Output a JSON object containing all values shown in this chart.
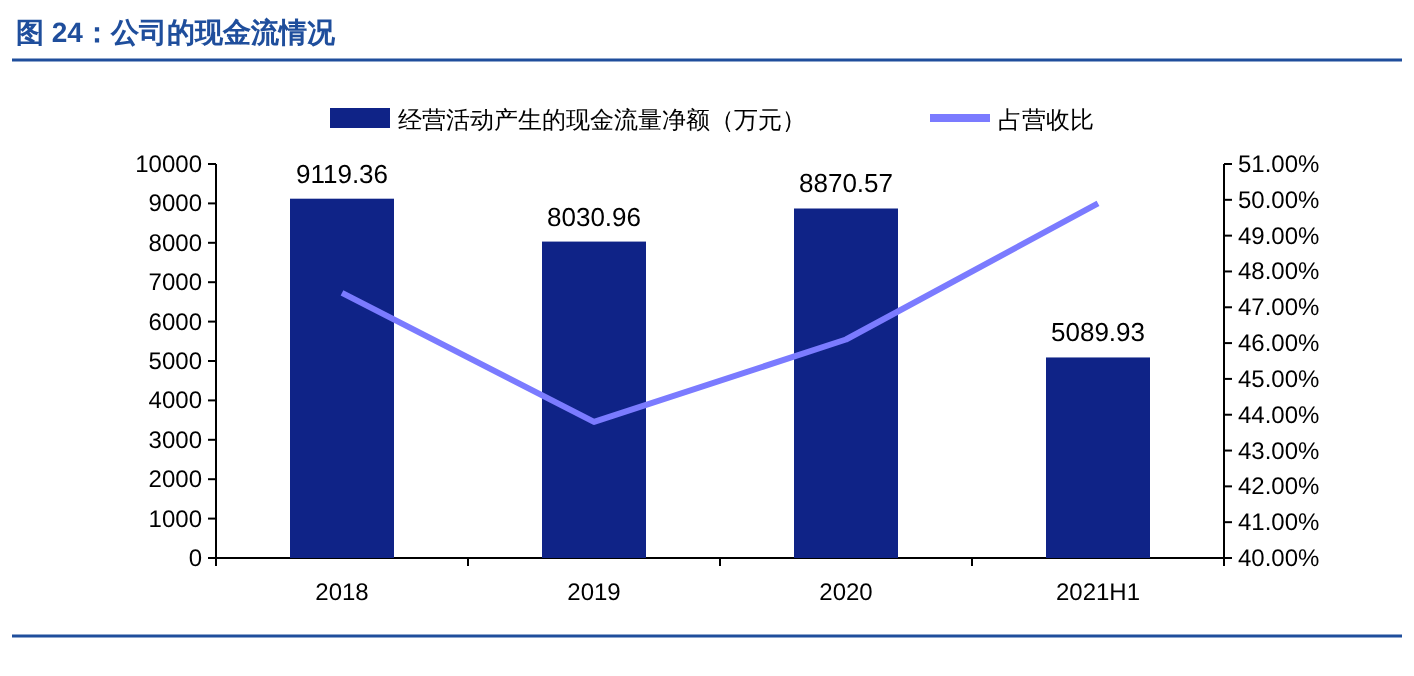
{
  "chart_data": {
    "type": "bar",
    "title": "图 24：公司的现金流情况",
    "categories": [
      "2018",
      "2019",
      "2020",
      "2021H1"
    ],
    "series": [
      {
        "name": "经营活动产生的现金流量净额（万元）",
        "color": "#0f2387",
        "values": [
          9119.36,
          8030.96,
          8870.57,
          5089.93
        ],
        "value_labels": [
          "9119.36",
          "8030.96",
          "8870.57",
          "5089.93"
        ]
      },
      {
        "name": "占营收比",
        "type": "line",
        "axis": "y2",
        "color": "#7b7bff",
        "values": [
          47.4,
          43.8,
          46.1,
          49.9
        ]
      }
    ],
    "ylim": [
      0,
      10000
    ],
    "yticks": [
      0,
      1000,
      2000,
      3000,
      4000,
      5000,
      6000,
      7000,
      8000,
      9000,
      10000
    ],
    "y2lim": [
      40,
      51
    ],
    "y2ticks": [
      {
        "value": 40,
        "label": "40.00%"
      },
      {
        "value": 41,
        "label": "41.00%"
      },
      {
        "value": 42,
        "label": "42.00%"
      },
      {
        "value": 43,
        "label": "43.00%"
      },
      {
        "value": 44,
        "label": "44.00%"
      },
      {
        "value": 45,
        "label": "45.00%"
      },
      {
        "value": 46,
        "label": "46.00%"
      },
      {
        "value": 47,
        "label": "47.00%"
      },
      {
        "value": 48,
        "label": "48.00%"
      },
      {
        "value": 49,
        "label": "49.00%"
      },
      {
        "value": 50,
        "label": "50.00%"
      },
      {
        "value": 51,
        "label": "51.00%"
      }
    ],
    "legend": "top",
    "grid": false
  }
}
